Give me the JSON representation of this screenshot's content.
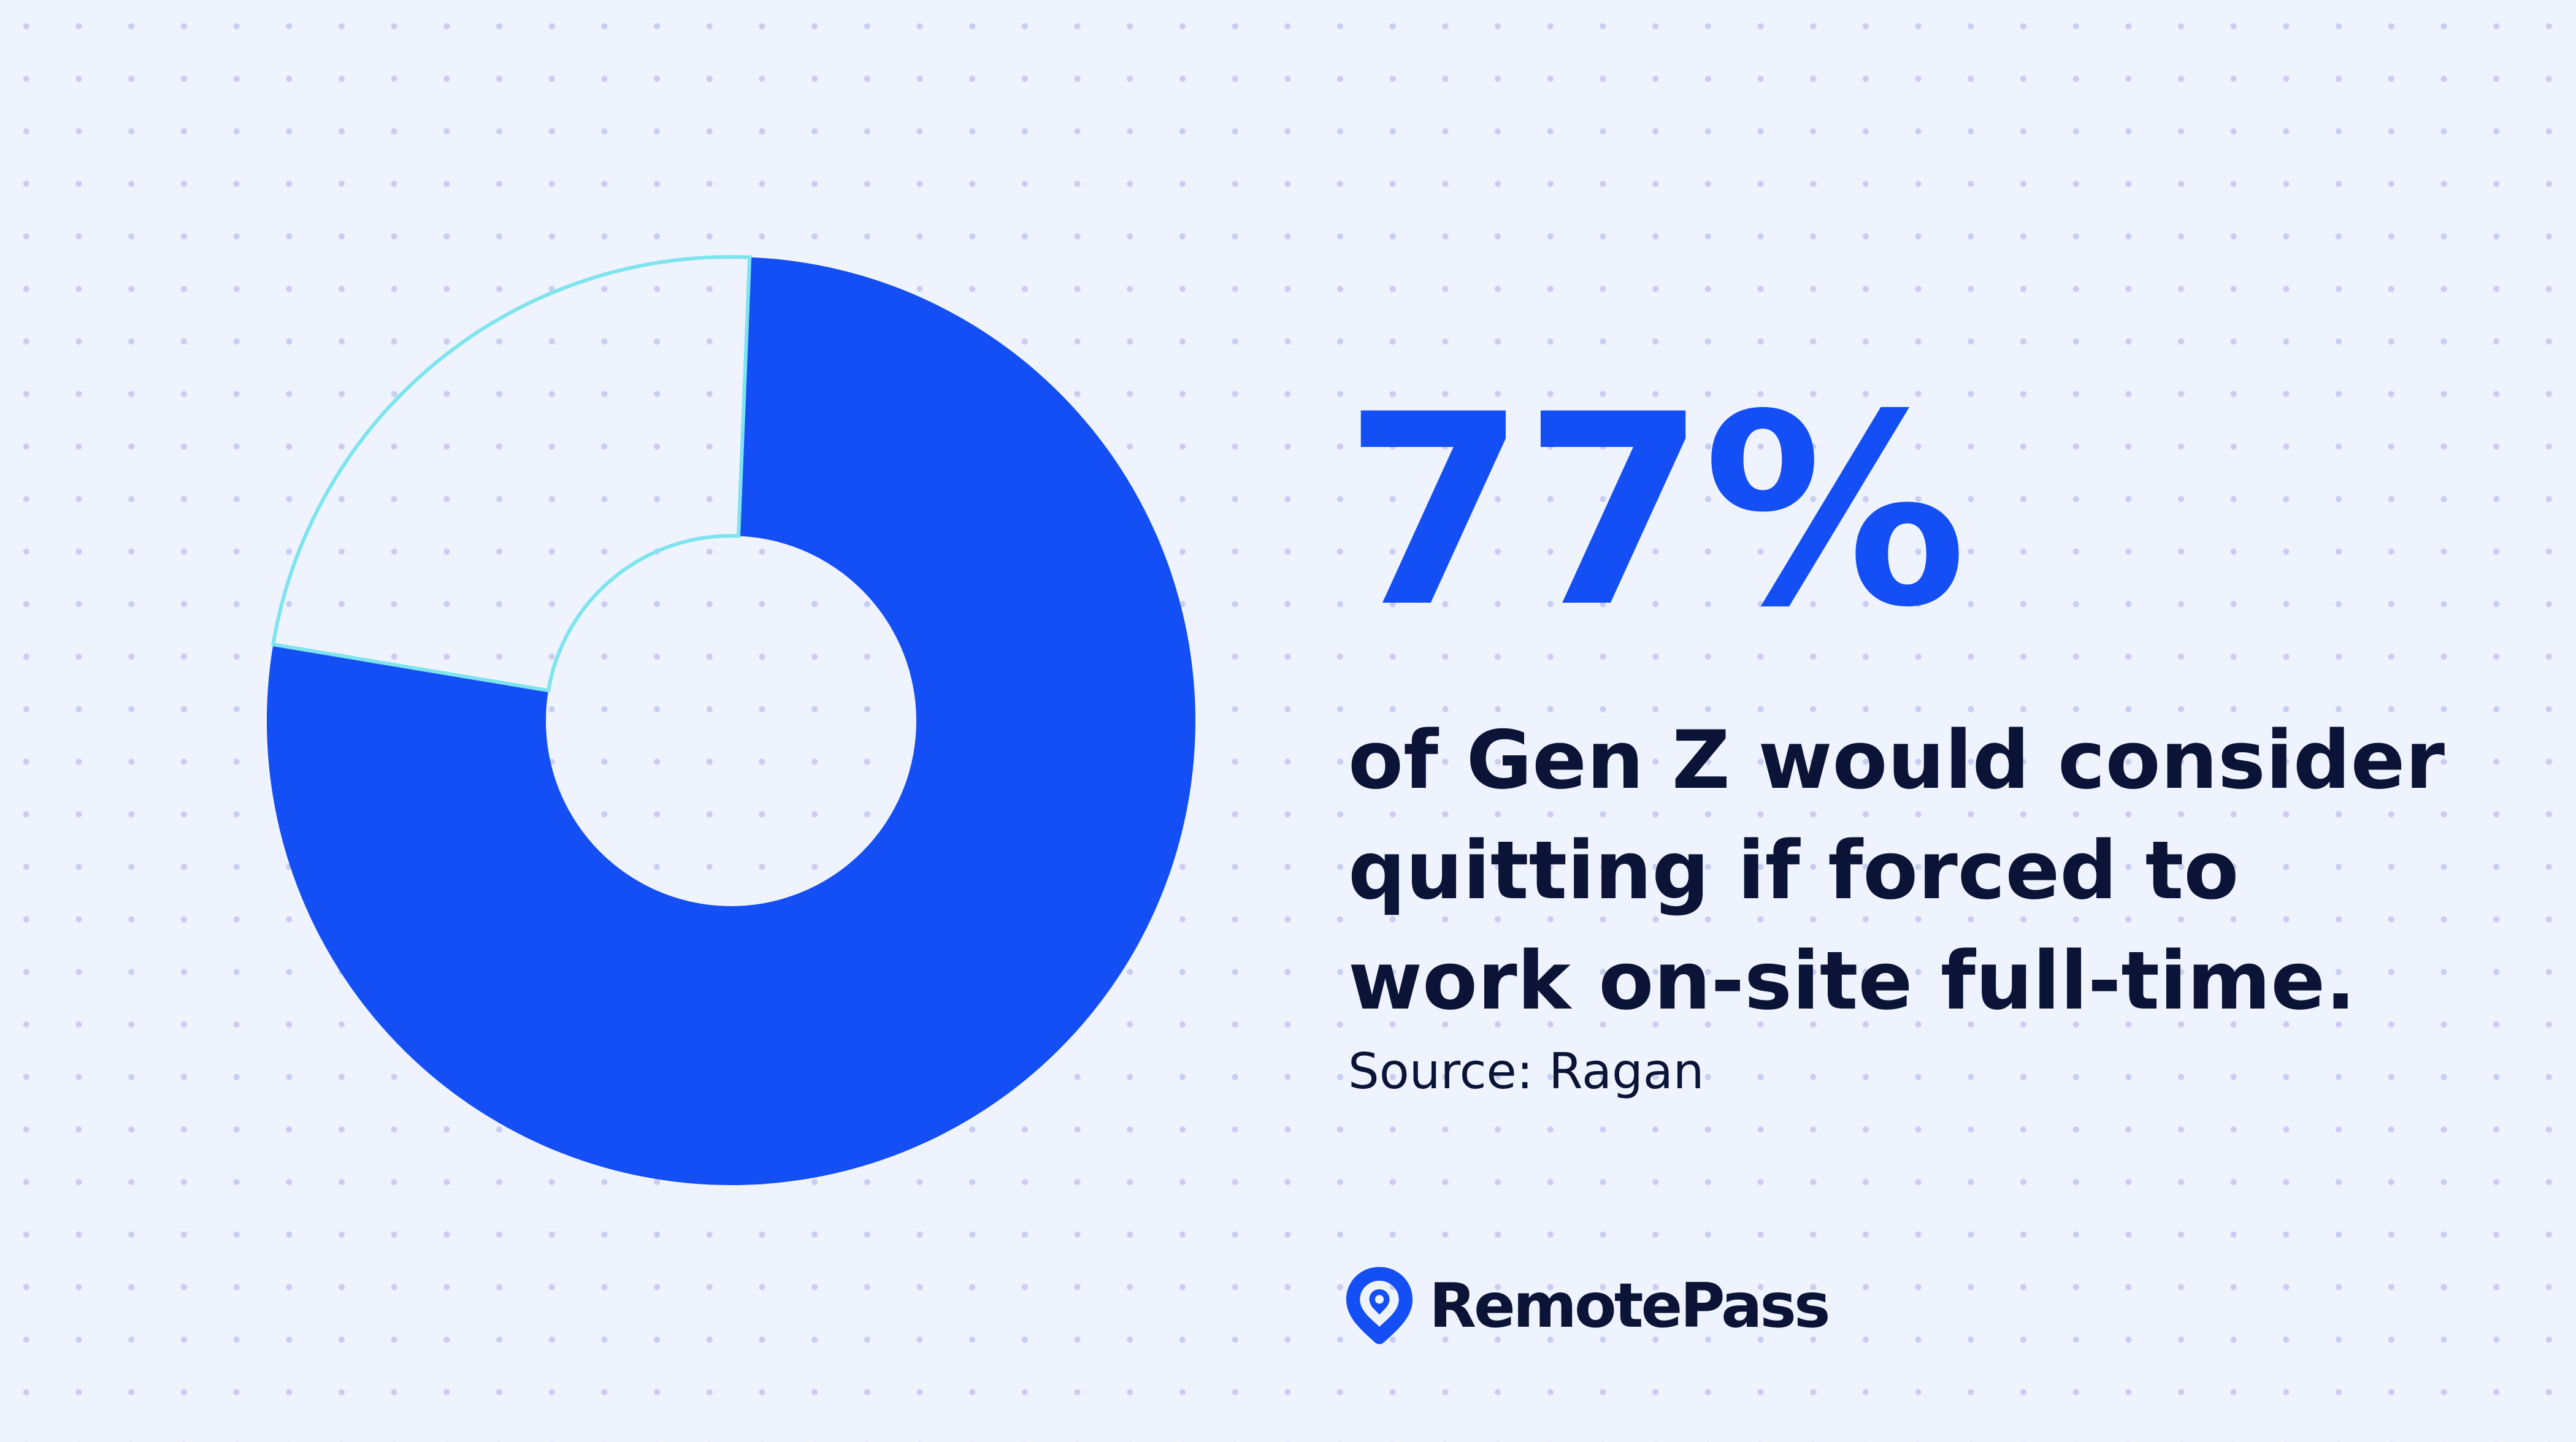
{
  "colors": {
    "accent": "#144ef5",
    "remainder_outline": "#7ee4ee",
    "text_dark": "#0b1437",
    "background": "#eef3fe",
    "grid_dot": "#c9cdf0"
  },
  "chart_data": {
    "type": "pie",
    "donut": true,
    "slices": [
      {
        "value": 77,
        "color": "#144ef5",
        "filled": true
      },
      {
        "value": 23,
        "color": "#7ee4ee",
        "filled": false
      }
    ]
  },
  "headline": {
    "value": "77%"
  },
  "statement": {
    "lines": [
      "of Gen Z would consider",
      "quitting if forced to",
      "work on-site full-time."
    ],
    "text": "of Gen Z would consider\nquitting if forced to\nwork on-site full-time."
  },
  "source": {
    "text": "Source: Ragan"
  },
  "brand": {
    "name": "RemotePass",
    "icon": "location-pin-icon"
  }
}
